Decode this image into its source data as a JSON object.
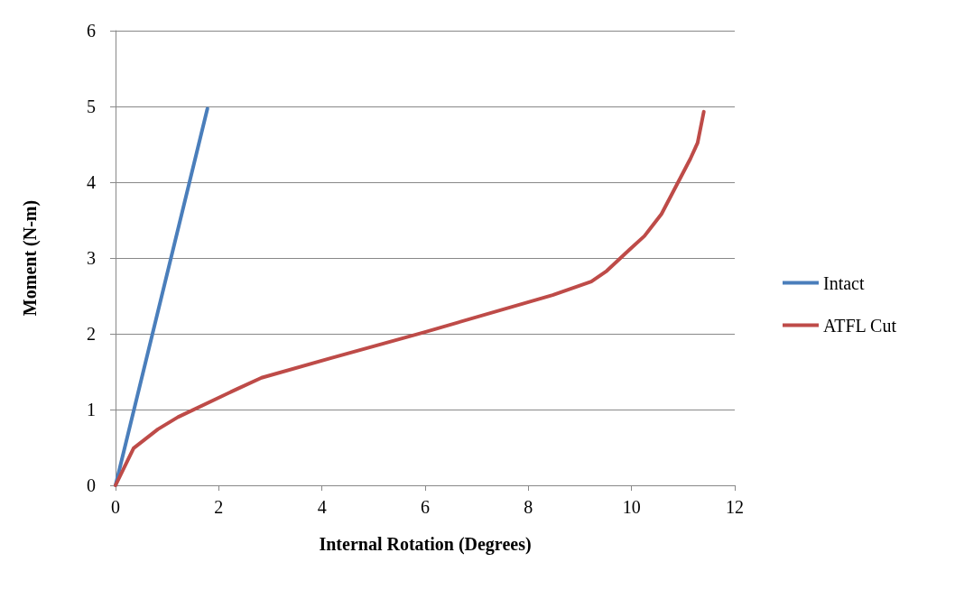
{
  "chart_data": {
    "type": "line",
    "xlabel": "Internal Rotation (Degrees)",
    "ylabel": "Moment (N-m)",
    "xlim": [
      0,
      12
    ],
    "xticks": [
      0,
      2,
      4,
      6,
      8,
      10,
      12
    ],
    "ylim": [
      0,
      6
    ],
    "yticks": [
      0,
      1,
      2,
      3,
      4,
      5,
      6
    ],
    "grid": "y",
    "legend": "right",
    "marker": "none",
    "line_style": "solid",
    "series": [
      {
        "name": "Intact",
        "color": "#4a7ebb",
        "x": [
          0,
          1.78
        ],
        "values": [
          0,
          4.97
        ]
      },
      {
        "name": "ATFL Cut",
        "color": "#be4b48",
        "x": [
          0,
          0.35,
          0.82,
          1.21,
          2.35,
          2.83,
          4.18,
          5.98,
          8.47,
          9.22,
          9.52,
          9.96,
          10.25,
          10.58,
          11.14,
          11.28,
          11.4
        ],
        "values": [
          0,
          0.49,
          0.74,
          0.9,
          1.27,
          1.42,
          1.68,
          2.02,
          2.51,
          2.69,
          2.83,
          3.11,
          3.29,
          3.58,
          4.31,
          4.52,
          4.93
        ]
      }
    ]
  }
}
